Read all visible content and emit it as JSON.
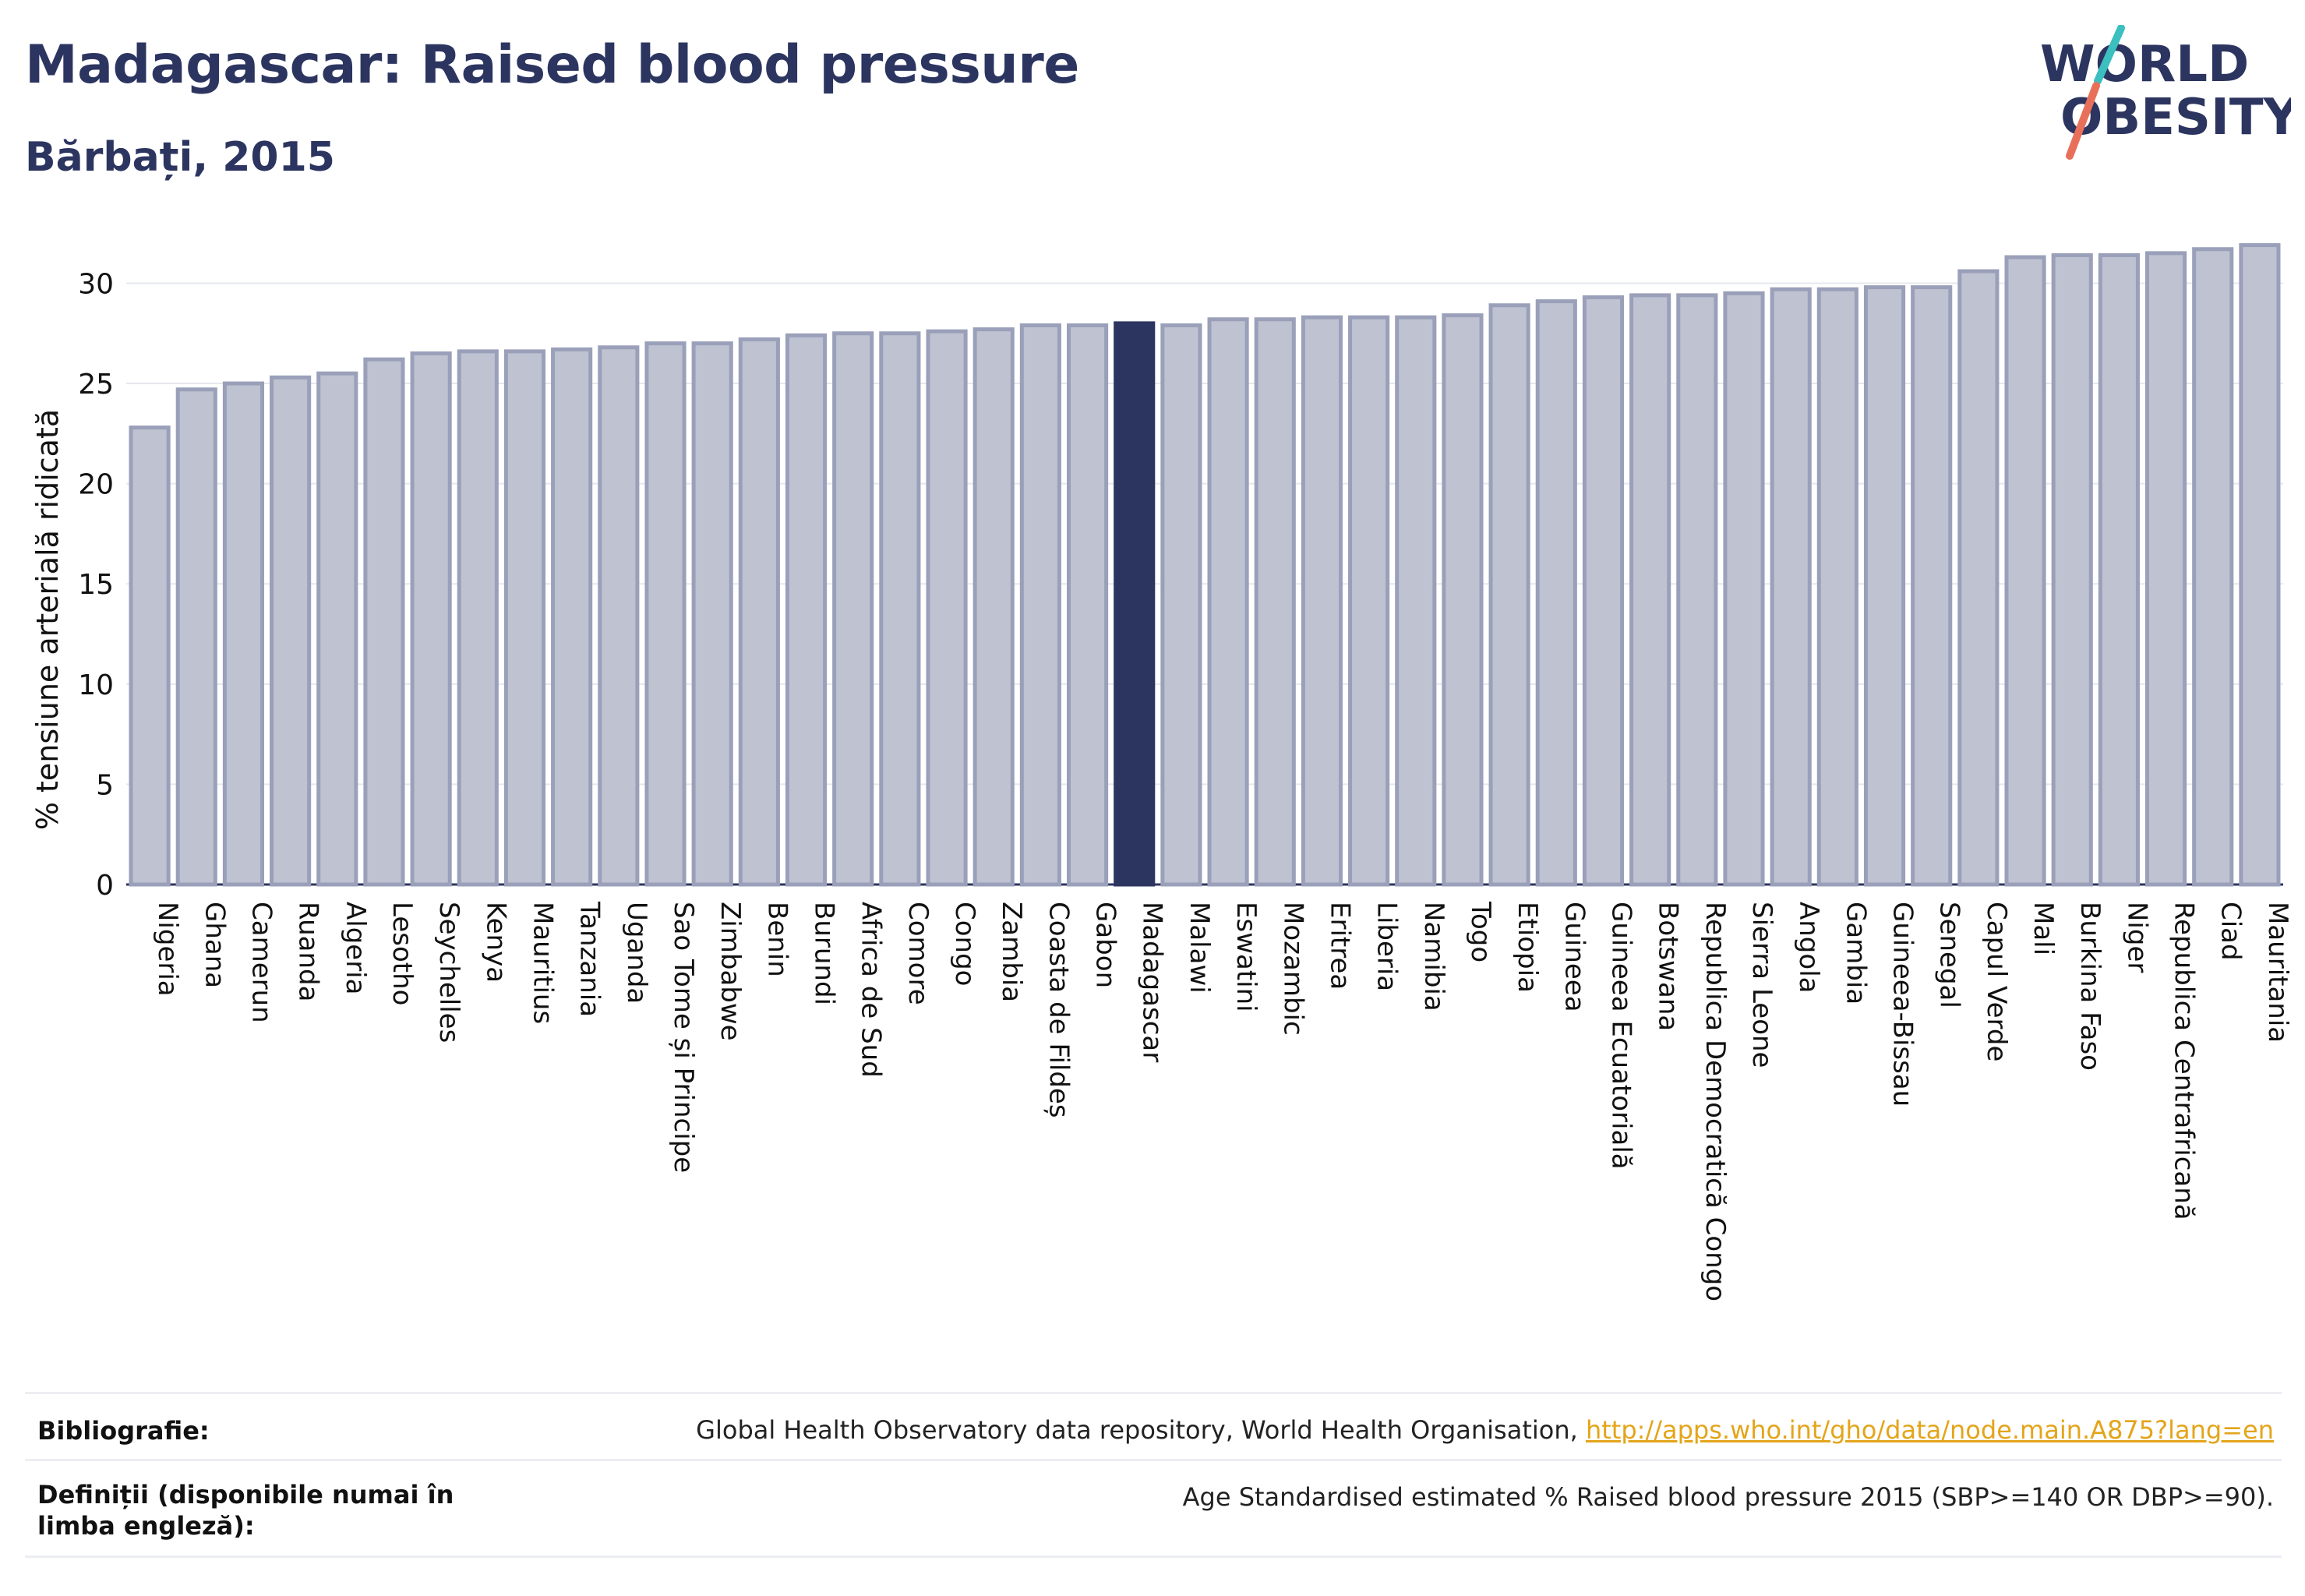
{
  "header": {
    "title": "Madagascar: Raised blood pressure",
    "subtitle": "Bărbați, 2015"
  },
  "logo": {
    "line1": "WORLD",
    "line2": "OBESITY",
    "accent_teal": "#3bbfbf",
    "accent_coral": "#e8705a"
  },
  "colors": {
    "bar_fill": "#bec2d1",
    "bar_stroke": "#9aa0b9",
    "highlight": "#2c3560",
    "text": "#2c3560"
  },
  "chart_data": {
    "type": "bar",
    "ylabel": "% tensiune arterială ridicată",
    "ylim": [
      0,
      32
    ],
    "yticks": [
      0,
      5,
      10,
      15,
      20,
      25,
      30
    ],
    "grid": true,
    "highlight": "Madagascar",
    "categories": [
      "Nigeria",
      "Ghana",
      "Camerun",
      "Ruanda",
      "Algeria",
      "Lesotho",
      "Seychelles",
      "Kenya",
      "Mauritius",
      "Tanzania",
      "Uganda",
      "Sao Tome și Principe",
      "Zimbabwe",
      "Benin",
      "Burundi",
      "Africa de Sud",
      "Comore",
      "Congo",
      "Zambia",
      "Coasta de Fildeș",
      "Gabon",
      "Madagascar",
      "Malawi",
      "Eswatini",
      "Mozambic",
      "Eritrea",
      "Liberia",
      "Namibia",
      "Togo",
      "Etiopia",
      "Guineea",
      "Guineea Ecuatorială",
      "Botswana",
      "Republica Democratică Congo",
      "Sierra Leone",
      "Angola",
      "Gambia",
      "Guineea-Bissau",
      "Senegal",
      "Capul Verde",
      "Mali",
      "Burkina Faso",
      "Niger",
      "Republica Centrafricană",
      "Ciad",
      "Mauritania"
    ],
    "values": [
      22.8,
      24.7,
      25.0,
      25.3,
      25.5,
      26.2,
      26.5,
      26.6,
      26.6,
      26.7,
      26.8,
      27.0,
      27.0,
      27.2,
      27.4,
      27.5,
      27.5,
      27.6,
      27.7,
      27.9,
      27.9,
      28.0,
      27.9,
      28.2,
      28.2,
      28.3,
      28.3,
      28.3,
      28.4,
      28.9,
      29.1,
      29.3,
      29.4,
      29.4,
      29.5,
      29.7,
      29.7,
      29.8,
      29.8,
      30.6,
      31.3,
      31.4,
      31.4,
      31.5,
      31.7,
      31.9
    ]
  },
  "footer": {
    "bib_label": "Bibliografie:",
    "bib_text": "Global Health Observatory data repository, World Health Organisation, ",
    "bib_link": "http://apps.who.int/gho/data/node.main.A875?lang=en",
    "def_label": "Definiții (disponibile numai în limba engleză):",
    "def_text": "Age Standardised estimated % Raised blood pressure 2015 (SBP>=140 OR DBP>=90)."
  }
}
